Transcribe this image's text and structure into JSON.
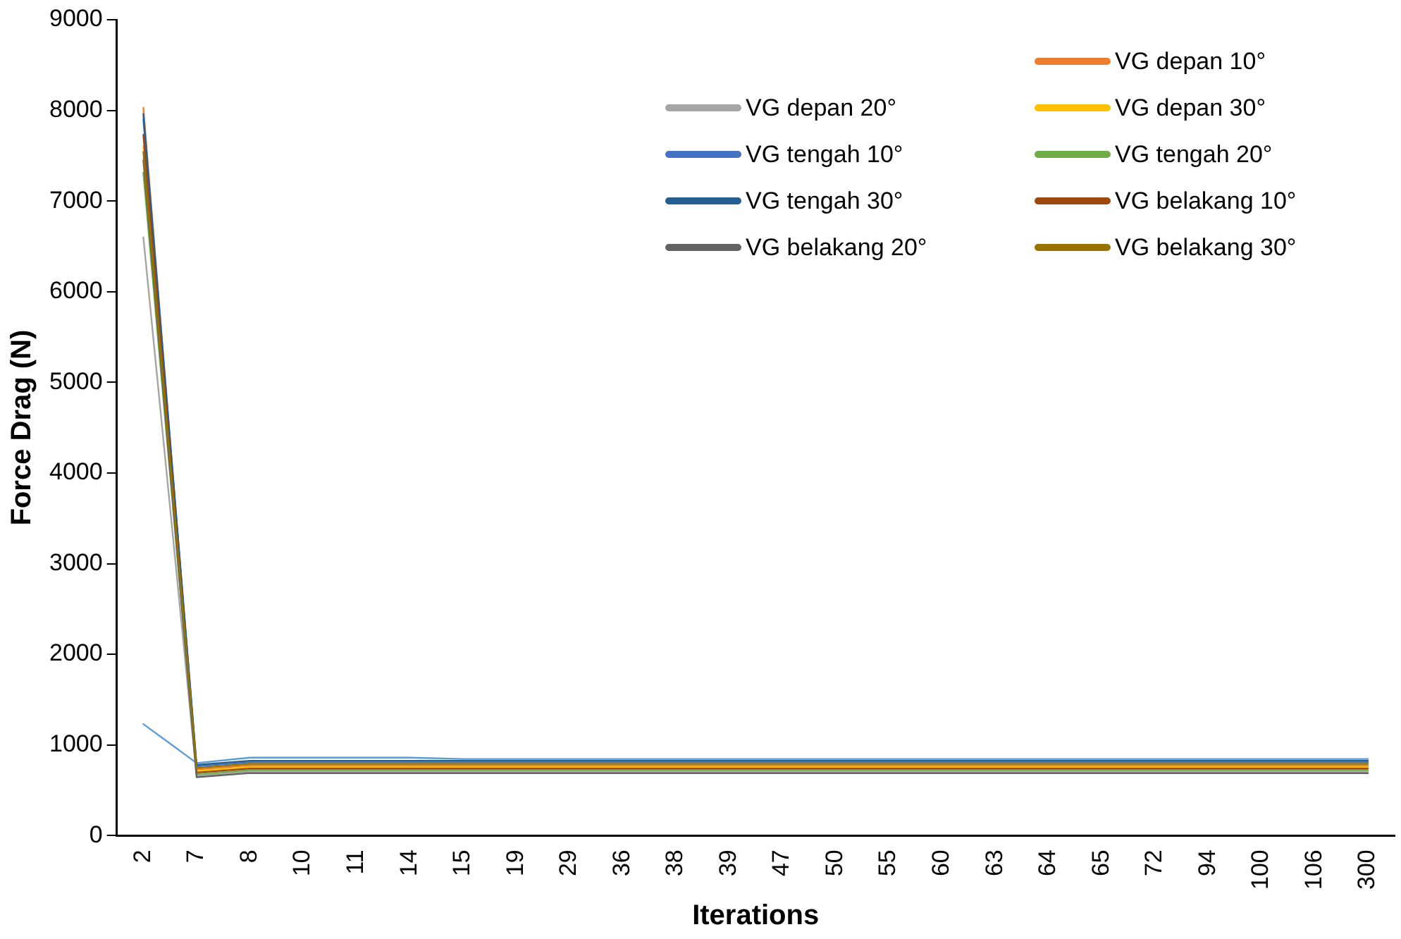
{
  "chart_data": {
    "type": "line",
    "xlabel": "Iterations",
    "ylabel": "Force Drag (N)",
    "categories": [
      "2",
      "7",
      "8",
      "10",
      "11",
      "14",
      "15",
      "19",
      "29",
      "36",
      "38",
      "39",
      "47",
      "50",
      "55",
      "60",
      "63",
      "64",
      "65",
      "72",
      "94",
      "100",
      "106",
      "300"
    ],
    "ylim": [
      0,
      9000
    ],
    "yticks": [
      0,
      1000,
      2000,
      3000,
      4000,
      5000,
      6000,
      7000,
      8000,
      9000
    ],
    "legend": "top right",
    "marker": "none",
    "series": [
      {
        "color": "#5b9bd5",
        "values": [
          1230,
          800,
          860,
          860,
          860,
          860,
          845,
          845,
          845,
          845,
          845,
          845,
          845,
          845,
          845,
          845,
          845,
          845,
          845,
          845,
          845,
          845,
          845,
          845
        ]
      },
      {
        "name": "VG depan 10°",
        "color": "#ed7d31",
        "values": [
          8030,
          729,
          774,
          774,
          774,
          774,
          774,
          774,
          774,
          774,
          774,
          774,
          774,
          774,
          774,
          774,
          774,
          774,
          774,
          774,
          774,
          774,
          774,
          774
        ]
      },
      {
        "name": "VG depan 20°",
        "color": "#a5a5a5",
        "values": [
          6600,
          661,
          706,
          706,
          706,
          706,
          706,
          706,
          706,
          706,
          706,
          706,
          706,
          706,
          706,
          706,
          706,
          706,
          706,
          706,
          706,
          706,
          706,
          706
        ]
      },
      {
        "name": "VG depan 30°",
        "color": "#ffc000",
        "values": [
          7600,
          712,
          757,
          757,
          757,
          757,
          757,
          757,
          757,
          757,
          757,
          757,
          757,
          757,
          757,
          757,
          757,
          757,
          757,
          757,
          757,
          757,
          757,
          757
        ]
      },
      {
        "name": "VG tengah 10°",
        "color": "#4472c4",
        "values": [
          7900,
          763,
          808,
          808,
          808,
          808,
          808,
          808,
          808,
          808,
          808,
          808,
          808,
          808,
          808,
          808,
          808,
          808,
          808,
          808,
          808,
          808,
          808,
          808
        ]
      },
      {
        "name": "VG tengah 20°",
        "color": "#70ad47",
        "values": [
          7310,
          678,
          723,
          723,
          723,
          723,
          723,
          723,
          723,
          723,
          723,
          723,
          723,
          723,
          723,
          723,
          723,
          723,
          723,
          723,
          723,
          723,
          723,
          723
        ]
      },
      {
        "name": "VG tengah 30°",
        "color": "#255e91",
        "values": [
          7960,
          780,
          825,
          825,
          825,
          825,
          825,
          825,
          825,
          825,
          825,
          825,
          825,
          825,
          825,
          825,
          825,
          825,
          825,
          825,
          825,
          825,
          825,
          825
        ]
      },
      {
        "name": "VG belakang 10°",
        "color": "#9e480e",
        "values": [
          7730,
          695,
          740,
          740,
          740,
          740,
          740,
          740,
          740,
          740,
          740,
          740,
          740,
          740,
          740,
          740,
          740,
          740,
          740,
          740,
          740,
          740,
          740,
          740
        ]
      },
      {
        "name": "VG belakang 20°",
        "color": "#636363",
        "values": [
          7450,
          644,
          689,
          689,
          689,
          689,
          689,
          689,
          689,
          689,
          689,
          689,
          689,
          689,
          689,
          689,
          689,
          689,
          689,
          689,
          689,
          689,
          689,
          689
        ]
      },
      {
        "name": "VG belakang 30°",
        "color": "#997300",
        "values": [
          7540,
          746,
          791,
          791,
          791,
          791,
          791,
          791,
          791,
          791,
          791,
          791,
          791,
          791,
          791,
          791,
          791,
          791,
          791,
          791,
          791,
          791,
          791,
          791
        ]
      }
    ]
  }
}
